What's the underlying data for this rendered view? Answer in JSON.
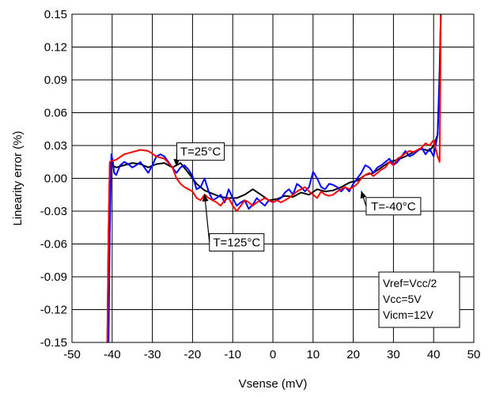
{
  "chart_data": {
    "type": "line",
    "title": "",
    "xlabel": "Vsense (mV)",
    "ylabel": "Linearity error (%)",
    "xlim": [
      -50,
      50
    ],
    "ylim": [
      -0.15,
      0.15
    ],
    "xticks": [
      -50,
      -40,
      -30,
      -20,
      -10,
      0,
      10,
      20,
      30,
      40,
      50
    ],
    "yticks": [
      -0.15,
      -0.12,
      -0.09,
      -0.06,
      -0.03,
      0.0,
      0.03,
      0.06,
      0.09,
      0.12,
      0.15
    ],
    "xtick_labels": [
      "-50",
      "-40",
      "-30",
      "-20",
      "-10",
      "0",
      "10",
      "20",
      "30",
      "40",
      "50"
    ],
    "ytick_labels": [
      "-0.15",
      "-0.12",
      "-0.09",
      "-0.06",
      "-0.03",
      "0.00",
      "0.03",
      "0.06",
      "0.09",
      "0.12",
      "0.15"
    ],
    "grid": true,
    "series": [
      {
        "name": "T=25°C",
        "color": "#000000",
        "x": [
          -41.2,
          -40.9,
          -40.6,
          -40,
          -39,
          -37,
          -35,
          -33,
          -31,
          -29,
          -27,
          -25,
          -23,
          -21,
          -19,
          -17,
          -15,
          -13,
          -11,
          -9,
          -7,
          -5,
          -3,
          -1,
          1,
          3,
          5,
          7,
          9,
          11,
          13,
          15,
          17,
          19,
          21,
          23,
          25,
          27,
          29,
          31,
          33,
          35,
          37,
          39,
          40,
          41,
          41.5,
          41.8
        ],
        "y": [
          -0.15,
          -0.05,
          0.012,
          0.012,
          0.01,
          0.012,
          0.014,
          0.013,
          0.01,
          0.013,
          0.014,
          0.01,
          0.014,
          0.005,
          -0.005,
          -0.011,
          -0.014,
          -0.017,
          -0.018,
          -0.018,
          -0.015,
          -0.01,
          -0.015,
          -0.02,
          -0.019,
          -0.016,
          -0.017,
          -0.013,
          -0.015,
          -0.01,
          -0.012,
          -0.011,
          -0.008,
          -0.004,
          -0.002,
          0.003,
          0.005,
          0.01,
          0.015,
          0.017,
          0.02,
          0.024,
          0.027,
          0.025,
          0.03,
          0.04,
          0.1,
          0.15
        ]
      },
      {
        "name": "T=-40°C",
        "color": "#0000ff",
        "x": [
          -40.9,
          -40.6,
          -40.2,
          -39.8,
          -39.5,
          -39,
          -38,
          -37,
          -36,
          -35,
          -34,
          -33,
          -32,
          -31,
          -30,
          -29,
          -28,
          -27,
          -26,
          -25,
          -24,
          -23,
          -22,
          -21,
          -20,
          -19,
          -18,
          -17,
          -16,
          -15,
          -14,
          -13,
          -12,
          -11,
          -10,
          -9,
          -8,
          -7,
          -6,
          -5,
          -4,
          -3,
          -2,
          -1,
          0,
          1,
          2,
          3,
          4,
          5,
          6,
          7,
          8,
          9,
          10,
          11,
          12,
          13,
          14,
          15,
          16,
          17,
          18,
          19,
          20,
          21,
          22,
          23,
          24,
          25,
          26,
          27,
          28,
          29,
          30,
          31,
          32,
          33,
          34,
          35,
          36,
          37,
          38,
          39,
          40,
          41,
          41.5,
          41.8
        ],
        "y": [
          -0.15,
          -0.05,
          0.022,
          0.015,
          0.005,
          0.003,
          0.012,
          0.015,
          0.013,
          0.01,
          0.012,
          0.015,
          0.01,
          0.005,
          0.012,
          0.02,
          0.022,
          0.02,
          0.015,
          0.01,
          0.005,
          0.01,
          0.012,
          0.008,
          0.002,
          -0.01,
          -0.008,
          0.0,
          -0.012,
          -0.02,
          -0.018,
          -0.015,
          -0.022,
          -0.01,
          -0.018,
          -0.025,
          -0.022,
          -0.02,
          -0.028,
          -0.024,
          -0.018,
          -0.022,
          -0.025,
          -0.02,
          -0.022,
          -0.02,
          -0.018,
          -0.013,
          -0.01,
          -0.015,
          -0.005,
          -0.008,
          -0.012,
          -0.008,
          0.006,
          0.0,
          -0.008,
          -0.01,
          -0.005,
          -0.006,
          -0.008,
          -0.012,
          -0.008,
          -0.012,
          -0.005,
          0.0,
          0.005,
          0.012,
          0.01,
          0.005,
          0.01,
          0.012,
          0.015,
          0.018,
          0.012,
          0.015,
          0.02,
          0.025,
          0.02,
          0.022,
          0.025,
          0.028,
          0.022,
          0.027,
          0.02,
          0.04,
          0.09,
          0.15
        ]
      },
      {
        "name": "T=125°C",
        "color": "#ff0000",
        "x": [
          -41.2,
          -40.9,
          -40.6,
          -40,
          -39,
          -37,
          -35,
          -33,
          -31,
          -29,
          -27,
          -25,
          -24,
          -23,
          -22,
          -21,
          -20,
          -19,
          -18,
          -17,
          -16,
          -15,
          -14,
          -13,
          -12,
          -11,
          -10,
          -9,
          -8,
          -7,
          -6,
          -5,
          -4,
          -3,
          -2,
          -1,
          0,
          1,
          2,
          3,
          4,
          5,
          6,
          7,
          8,
          9,
          10,
          11,
          12,
          13,
          14,
          15,
          16,
          17,
          18,
          19,
          20,
          21,
          22,
          23,
          24,
          25,
          26,
          27,
          28,
          29,
          30,
          31,
          32,
          33,
          34,
          35,
          36,
          37,
          38,
          39,
          40,
          41,
          41.5,
          41.8
        ],
        "y": [
          -0.15,
          -0.05,
          0.015,
          0.016,
          0.017,
          0.022,
          0.024,
          0.026,
          0.025,
          0.02,
          0.018,
          0.01,
          0.0,
          -0.005,
          -0.008,
          -0.01,
          -0.012,
          -0.018,
          -0.02,
          -0.015,
          -0.018,
          -0.02,
          -0.022,
          -0.025,
          -0.02,
          -0.018,
          -0.025,
          -0.03,
          -0.025,
          -0.02,
          -0.022,
          -0.025,
          -0.022,
          -0.02,
          -0.018,
          -0.02,
          -0.022,
          -0.02,
          -0.022,
          -0.02,
          -0.018,
          -0.015,
          -0.012,
          -0.01,
          -0.008,
          -0.012,
          -0.015,
          -0.018,
          -0.012,
          -0.015,
          -0.016,
          -0.015,
          -0.012,
          -0.01,
          -0.008,
          -0.01,
          -0.008,
          -0.005,
          0.0,
          0.003,
          0.005,
          0.002,
          0.005,
          0.008,
          0.01,
          0.015,
          0.012,
          0.018,
          0.02,
          0.023,
          0.025,
          0.024,
          0.026,
          0.028,
          0.032,
          0.03,
          0.035,
          0.02,
          0.015,
          0.15
        ]
      }
    ],
    "annotations": [
      {
        "text": "T=25°C",
        "x": -18,
        "y": 0.0245,
        "target_x": -24,
        "target_y": 0.011
      },
      {
        "text": "T=-40°C",
        "x": 30,
        "y": -0.0255,
        "target_x": 22,
        "target_y": -0.0115
      },
      {
        "text": "T=125°C",
        "x": -9,
        "y": -0.0585,
        "target_x": -17,
        "target_y": -0.0145
      }
    ],
    "info_box": [
      "Vref=Vcc/2",
      "Vcc=5V",
      "Vicm=12V"
    ]
  }
}
